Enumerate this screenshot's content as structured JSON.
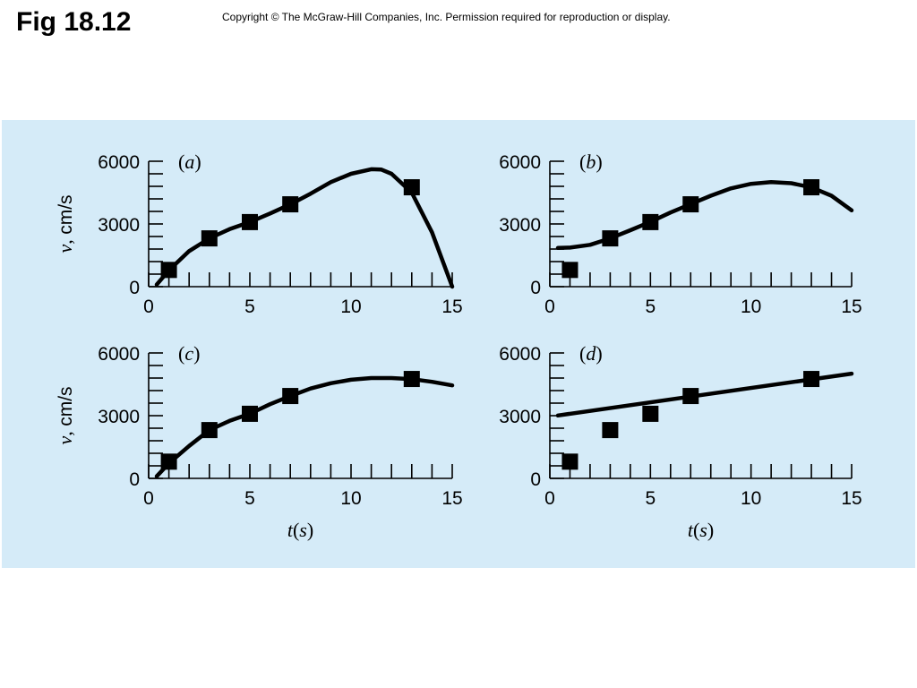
{
  "header": {
    "title": "Fig 18.12",
    "copyright": "Copyright © The McGraw-Hill Companies, Inc. Permission required for reproduction or display."
  },
  "colors": {
    "panel_background": "#d5ebf8",
    "ink": "#000000"
  },
  "chart_data": [
    {
      "type": "scatter",
      "panel": "(a)",
      "ylabel": "v, cm/s",
      "xlabel": "",
      "xlim": [
        0,
        15
      ],
      "ylim": [
        0,
        6000
      ],
      "xticks": [
        0,
        5,
        10,
        15
      ],
      "yticks": [
        0,
        3000,
        6000
      ],
      "grid": false,
      "points": {
        "x": [
          1,
          3,
          5,
          7,
          13
        ],
        "y": [
          800,
          2310,
          3090,
          3940,
          4755
        ]
      },
      "fit_curve": {
        "x": [
          0.4,
          1,
          2,
          3,
          4,
          5,
          6,
          7,
          8,
          9,
          10,
          11,
          11.5,
          12,
          13,
          14,
          14.5,
          15
        ],
        "y": [
          100,
          780,
          1700,
          2310,
          2750,
          3090,
          3500,
          3940,
          4450,
          5000,
          5400,
          5620,
          5600,
          5400,
          4500,
          2600,
          1300,
          0
        ]
      }
    },
    {
      "type": "scatter",
      "panel": "(b)",
      "ylabel": "",
      "xlabel": "",
      "xlim": [
        0,
        15
      ],
      "ylim": [
        0,
        6000
      ],
      "xticks": [
        0,
        5,
        10,
        15
      ],
      "yticks": [
        0,
        3000,
        6000
      ],
      "grid": false,
      "points": {
        "x": [
          1,
          3,
          5,
          7,
          13
        ],
        "y": [
          800,
          2310,
          3090,
          3940,
          4755
        ]
      },
      "fit_curve": {
        "x": [
          0.4,
          1,
          2,
          3,
          4,
          5,
          6,
          7,
          8,
          9,
          10,
          11,
          12,
          13,
          14,
          15
        ],
        "y": [
          1850,
          1870,
          2000,
          2310,
          2700,
          3100,
          3550,
          3950,
          4350,
          4700,
          4920,
          5000,
          4950,
          4750,
          4350,
          3650
        ]
      }
    },
    {
      "type": "scatter",
      "panel": "(c)",
      "ylabel": "v, cm/s",
      "xlabel": "t(s)",
      "xlim": [
        0,
        15
      ],
      "ylim": [
        0,
        6000
      ],
      "xticks": [
        0,
        5,
        10,
        15
      ],
      "yticks": [
        0,
        3000,
        6000
      ],
      "grid": false,
      "points": {
        "x": [
          1,
          3,
          5,
          7,
          13
        ],
        "y": [
          800,
          2310,
          3090,
          3940,
          4755
        ]
      },
      "fit_curve": {
        "x": [
          0.4,
          1,
          2,
          3,
          4,
          5,
          6,
          7,
          8,
          9,
          10,
          11,
          12,
          13,
          14,
          15
        ],
        "y": [
          100,
          720,
          1550,
          2310,
          2750,
          3090,
          3550,
          3940,
          4300,
          4550,
          4720,
          4800,
          4800,
          4750,
          4620,
          4450
        ]
      }
    },
    {
      "type": "scatter",
      "panel": "(d)",
      "ylabel": "",
      "xlabel": "t(s)",
      "xlim": [
        0,
        15
      ],
      "ylim": [
        0,
        6000
      ],
      "xticks": [
        0,
        5,
        10,
        15
      ],
      "yticks": [
        0,
        3000,
        6000
      ],
      "grid": false,
      "points": {
        "x": [
          1,
          3,
          5,
          7,
          13
        ],
        "y": [
          800,
          2310,
          3090,
          3940,
          4755
        ]
      },
      "fit_curve": {
        "x": [
          0.4,
          15
        ],
        "y": [
          3010,
          5010
        ]
      }
    }
  ]
}
